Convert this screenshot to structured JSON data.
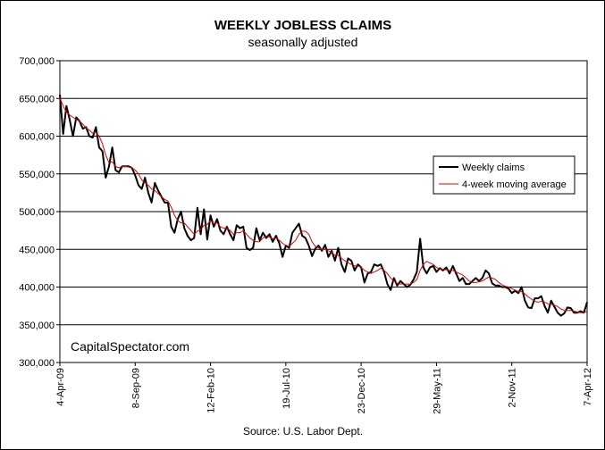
{
  "chart_data": {
    "type": "line",
    "title": "WEEKLY JOBLESS CLAIMS",
    "subtitle": "seasonally adjusted",
    "xlabel": "",
    "ylabel": "",
    "ylim": [
      300000,
      700000
    ],
    "y_ticks": [
      "300,000",
      "350,000",
      "400,000",
      "450,000",
      "500,000",
      "550,000",
      "600,000",
      "650,000",
      "700,000"
    ],
    "x_ticks": [
      "4-Apr-09",
      "8-Sep-09",
      "12-Feb-10",
      "19-Jul-10",
      "23-Dec-10",
      "29-May-11",
      "2-Nov-11",
      "7-Apr-12"
    ],
    "grid": "horizontal",
    "legend_position": "right",
    "colors": {
      "weekly": "#000000",
      "average": "#e00000"
    },
    "series": [
      {
        "name": "Weekly claims",
        "values": [
          655000,
          603000,
          640000,
          622000,
          600000,
          625000,
          620000,
          610000,
          612000,
          600000,
          598000,
          612000,
          585000,
          580000,
          545000,
          560000,
          585000,
          555000,
          552000,
          560000,
          560000,
          560000,
          558000,
          548000,
          535000,
          530000,
          545000,
          525000,
          512000,
          538000,
          528000,
          520000,
          512000,
          512000,
          480000,
          472000,
          490000,
          500000,
          478000,
          468000,
          462000,
          465000,
          505000,
          470000,
          503000,
          463000,
          495000,
          480000,
          490000,
          475000,
          470000,
          480000,
          470000,
          462000,
          482000,
          478000,
          480000,
          452000,
          449000,
          452000,
          478000,
          462000,
          472000,
          465000,
          470000,
          460000,
          468000,
          458000,
          440000,
          455000,
          452000,
          472000,
          478000,
          484000,
          468000,
          465000,
          455000,
          441000,
          451000,
          455000,
          448000,
          456000,
          440000,
          448000,
          435000,
          452000,
          430000,
          420000,
          438000,
          435000,
          422000,
          430000,
          426000,
          406000,
          418000,
          420000,
          430000,
          428000,
          430000,
          420000,
          404000,
          396000,
          412000,
          402000,
          408000,
          404000,
          400000,
          403000,
          410000,
          420000,
          464000,
          426000,
          418000,
          426000,
          428000,
          420000,
          425000,
          422000,
          426000,
          418000,
          428000,
          418000,
          408000,
          412000,
          404000,
          404000,
          408000,
          412000,
          408000,
          412000,
          422000,
          418000,
          405000,
          402000,
          402000,
          400000,
          400000,
          398000,
          392000,
          395000,
          392000,
          400000,
          382000,
          373000,
          372000,
          385000,
          385000,
          388000,
          375000,
          366000,
          382000,
          374000,
          366000,
          362000,
          365000,
          373000,
          372000,
          366000,
          366000,
          368000,
          366000,
          380000
        ]
      },
      {
        "name": "4-week moving average",
        "values": [
          651000,
          640000,
          632000,
          628000,
          625000,
          622000,
          620000,
          616000,
          611000,
          608000,
          604000,
          605000,
          600000,
          590000,
          575000,
          565000,
          566000,
          560000,
          558000,
          560000,
          560000,
          559000,
          558000,
          555000,
          550000,
          542000,
          538000,
          535000,
          530000,
          528000,
          524000,
          520000,
          516000,
          514000,
          506000,
          495000,
          488000,
          485000,
          485000,
          480000,
          475000,
          470000,
          474000,
          476000,
          482000,
          483000,
          488000,
          484000,
          485000,
          480000,
          478000,
          478000,
          475000,
          470000,
          472000,
          472000,
          475000,
          470000,
          465000,
          462000,
          460000,
          460000,
          465000,
          468000,
          466000,
          464000,
          465000,
          462000,
          458000,
          455000,
          454000,
          458000,
          462000,
          470000,
          474000,
          474000,
          470000,
          460000,
          454000,
          452000,
          450000,
          450000,
          448000,
          446000,
          442000,
          442000,
          438000,
          435000,
          432000,
          430000,
          428000,
          428000,
          426000,
          422000,
          420000,
          418000,
          420000,
          422000,
          425000,
          422000,
          418000,
          412000,
          408000,
          405000,
          404000,
          404000,
          404000,
          404000,
          406000,
          410000,
          422000,
          430000,
          434000,
          432000,
          430000,
          426000,
          424000,
          423000,
          423000,
          422000,
          422000,
          420000,
          418000,
          416000,
          412000,
          408000,
          406000,
          406000,
          407000,
          408000,
          411000,
          413000,
          412000,
          410000,
          406000,
          403000,
          401000,
          400000,
          398000,
          396000,
          394000,
          394000,
          391000,
          387000,
          384000,
          381000,
          380000,
          381000,
          380000,
          378000,
          377000,
          376000,
          374000,
          371000,
          369000,
          369000,
          369000,
          368000,
          367000,
          366000,
          366000,
          368000
        ]
      }
    ]
  },
  "watermark": "CapitalSpectator.com",
  "source": "Source: U.S. Labor Dept."
}
